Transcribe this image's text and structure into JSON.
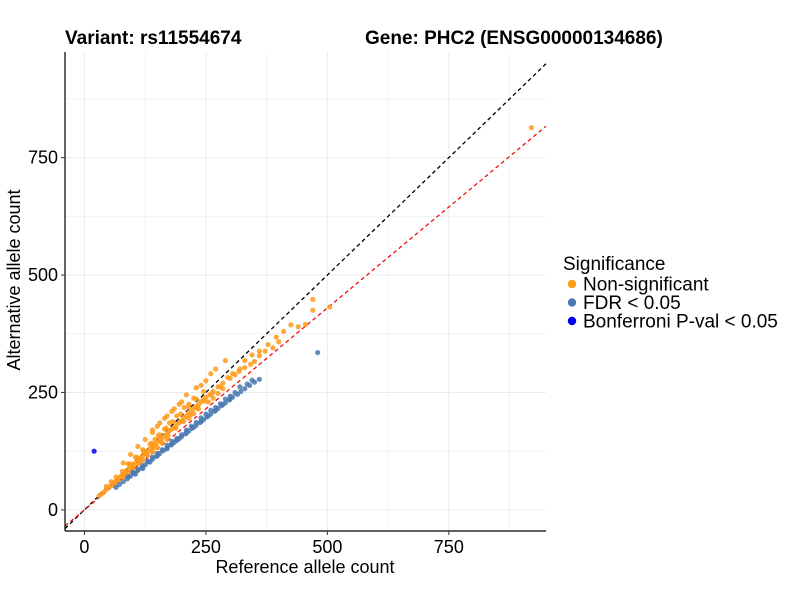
{
  "chart_data": {
    "type": "scatter",
    "title_left": "Variant: rs11554674",
    "title_right": "Gene: PHC2 (ENSG00000134686)",
    "xlabel": "Reference allele count",
    "ylabel": "Alternative allele count",
    "xlim": [
      -40,
      950
    ],
    "ylim": [
      -45,
      975
    ],
    "xticks": [
      0,
      250,
      500,
      750
    ],
    "yticks": [
      0,
      250,
      500,
      750
    ],
    "grid": true,
    "legend": {
      "title": "Significance",
      "placement": "right",
      "entries": [
        {
          "label": "Non-significant",
          "color": "#ff9a1a"
        },
        {
          "label": "FDR < 0.05",
          "color": "#4a78b0"
        },
        {
          "label": "Bonferroni P-val < 0.05",
          "color": "#0000ee"
        }
      ]
    },
    "reference_lines": [
      {
        "name": "identity",
        "slope": 1.0,
        "intercept": 0,
        "color": "#000000",
        "dash": true
      },
      {
        "name": "fit",
        "slope": 0.86,
        "intercept": 0,
        "color": "#ee1111",
        "dash": true
      }
    ],
    "series": [
      {
        "name": "Non-significant",
        "color": "#ff9a1a",
        "points": [
          [
            920,
            814
          ],
          [
            505,
            432
          ],
          [
            470,
            425
          ],
          [
            455,
            395
          ],
          [
            440,
            390
          ],
          [
            400,
            358
          ],
          [
            388,
            345
          ],
          [
            372,
            338
          ],
          [
            360,
            328
          ],
          [
            350,
            316
          ],
          [
            342,
            310
          ],
          [
            330,
            303
          ],
          [
            318,
            295
          ],
          [
            305,
            290
          ],
          [
            295,
            282
          ],
          [
            285,
            270
          ],
          [
            275,
            262
          ],
          [
            265,
            252
          ],
          [
            258,
            245
          ],
          [
            250,
            240
          ],
          [
            245,
            235
          ],
          [
            240,
            230
          ],
          [
            235,
            224
          ],
          [
            228,
            220
          ],
          [
            222,
            214
          ],
          [
            215,
            208
          ],
          [
            210,
            200
          ],
          [
            205,
            196
          ],
          [
            200,
            190
          ],
          [
            195,
            186
          ],
          [
            190,
            182
          ],
          [
            185,
            176
          ],
          [
            180,
            172
          ],
          [
            175,
            168
          ],
          [
            170,
            162
          ],
          [
            165,
            158
          ],
          [
            160,
            154
          ],
          [
            155,
            148
          ],
          [
            150,
            144
          ],
          [
            145,
            140
          ],
          [
            140,
            134
          ],
          [
            135,
            130
          ],
          [
            130,
            125
          ],
          [
            125,
            120
          ],
          [
            120,
            116
          ],
          [
            115,
            110
          ],
          [
            110,
            105
          ],
          [
            105,
            100
          ],
          [
            100,
            96
          ],
          [
            95,
            92
          ],
          [
            90,
            86
          ],
          [
            85,
            82
          ],
          [
            80,
            76
          ],
          [
            75,
            72
          ],
          [
            70,
            68
          ],
          [
            65,
            62
          ],
          [
            60,
            58
          ],
          [
            55,
            52
          ],
          [
            50,
            48
          ],
          [
            45,
            44
          ],
          [
            40,
            38
          ],
          [
            35,
            34
          ],
          [
            30,
            30
          ],
          [
            230,
            260
          ],
          [
            210,
            245
          ],
          [
            195,
            225
          ],
          [
            180,
            210
          ],
          [
            165,
            195
          ],
          [
            150,
            178
          ],
          [
            140,
            165
          ],
          [
            125,
            150
          ],
          [
            110,
            135
          ],
          [
            95,
            118
          ],
          [
            80,
            100
          ],
          [
            260,
            290
          ],
          [
            270,
            300
          ],
          [
            290,
            318
          ],
          [
            250,
            275
          ],
          [
            240,
            265
          ],
          [
            225,
            238
          ],
          [
            215,
            225
          ],
          [
            205,
            218
          ],
          [
            190,
            200
          ],
          [
            175,
            185
          ],
          [
            165,
            172
          ],
          [
            155,
            160
          ],
          [
            145,
            150
          ],
          [
            135,
            140
          ],
          [
            120,
            128
          ],
          [
            105,
            112
          ],
          [
            90,
            98
          ],
          [
            300,
            280
          ],
          [
            310,
            288
          ],
          [
            320,
            300
          ],
          [
            280,
            262
          ],
          [
            262,
            248
          ],
          [
            248,
            232
          ],
          [
            232,
            216
          ],
          [
            218,
            202
          ],
          [
            204,
            188
          ],
          [
            188,
            174
          ],
          [
            172,
            158
          ],
          [
            158,
            146
          ],
          [
            142,
            132
          ],
          [
            128,
            118
          ],
          [
            114,
            104
          ],
          [
            98,
            90
          ],
          [
            84,
            76
          ],
          [
            70,
            62
          ],
          [
            60,
            52
          ],
          [
            245,
            252
          ],
          [
            230,
            236
          ],
          [
            214,
            220
          ],
          [
            198,
            204
          ],
          [
            182,
            188
          ],
          [
            168,
            174
          ],
          [
            152,
            158
          ],
          [
            138,
            142
          ],
          [
            122,
            126
          ],
          [
            108,
            112
          ],
          [
            94,
            98
          ],
          [
            78,
            82
          ],
          [
            65,
            70
          ],
          [
            55,
            60
          ],
          [
            45,
            50
          ],
          [
            330,
            318
          ],
          [
            345,
            330
          ],
          [
            360,
            338
          ],
          [
            378,
            352
          ],
          [
            395,
            368
          ],
          [
            410,
            380
          ],
          [
            425,
            394
          ],
          [
            470,
            448
          ],
          [
            215,
            195
          ],
          [
            225,
            205
          ],
          [
            235,
            215
          ],
          [
            255,
            230
          ],
          [
            265,
            238
          ],
          [
            275,
            248
          ],
          [
            285,
            258
          ],
          [
            170,
            150
          ],
          [
            160,
            142
          ],
          [
            150,
            133
          ],
          [
            140,
            124
          ],
          [
            130,
            116
          ],
          [
            120,
            107
          ],
          [
            110,
            98
          ],
          [
            100,
            88
          ],
          [
            90,
            80
          ],
          [
            80,
            70
          ],
          [
            200,
            230
          ],
          [
            185,
            215
          ],
          [
            170,
            200
          ],
          [
            155,
            185
          ],
          [
            140,
            170
          ]
        ]
      },
      {
        "name": "FDR < 0.05",
        "color": "#4a78b0",
        "points": [
          [
            480,
            335
          ],
          [
            360,
            278
          ],
          [
            350,
            272
          ],
          [
            340,
            265
          ],
          [
            330,
            258
          ],
          [
            322,
            252
          ],
          [
            315,
            246
          ],
          [
            305,
            240
          ],
          [
            298,
            234
          ],
          [
            290,
            228
          ],
          [
            282,
            222
          ],
          [
            275,
            216
          ],
          [
            268,
            210
          ],
          [
            260,
            204
          ],
          [
            252,
            198
          ],
          [
            245,
            192
          ],
          [
            238,
            186
          ],
          [
            230,
            180
          ],
          [
            222,
            174
          ],
          [
            215,
            168
          ],
          [
            208,
            162
          ],
          [
            200,
            156
          ],
          [
            192,
            150
          ],
          [
            185,
            144
          ],
          [
            178,
            138
          ],
          [
            170,
            132
          ],
          [
            162,
            126
          ],
          [
            155,
            120
          ],
          [
            148,
            114
          ],
          [
            140,
            108
          ],
          [
            132,
            102
          ],
          [
            125,
            96
          ],
          [
            118,
            90
          ],
          [
            110,
            84
          ],
          [
            102,
            78
          ],
          [
            95,
            72
          ],
          [
            88,
            66
          ],
          [
            80,
            60
          ],
          [
            72,
            54
          ],
          [
            65,
            48
          ],
          [
            310,
            250
          ],
          [
            300,
            242
          ],
          [
            290,
            236
          ],
          [
            280,
            226
          ],
          [
            270,
            218
          ],
          [
            260,
            212
          ],
          [
            250,
            204
          ],
          [
            240,
            196
          ],
          [
            230,
            186
          ],
          [
            220,
            178
          ],
          [
            210,
            170
          ],
          [
            200,
            160
          ],
          [
            190,
            152
          ],
          [
            180,
            146
          ],
          [
            170,
            138
          ],
          [
            160,
            128
          ],
          [
            150,
            120
          ],
          [
            140,
            112
          ],
          [
            130,
            104
          ],
          [
            120,
            94
          ],
          [
            110,
            86
          ],
          [
            100,
            80
          ],
          [
            90,
            70
          ],
          [
            170,
            130
          ],
          [
            180,
            140
          ],
          [
            190,
            148
          ],
          [
            320,
            262
          ],
          [
            335,
            268
          ],
          [
            345,
            276
          ],
          [
            300,
            236
          ],
          [
            285,
            224
          ],
          [
            270,
            212
          ],
          [
            255,
            200
          ],
          [
            240,
            188
          ],
          [
            225,
            176
          ],
          [
            210,
            164
          ],
          [
            195,
            152
          ],
          [
            150,
            115
          ],
          [
            135,
            102
          ],
          [
            120,
            88
          ],
          [
            105,
            76
          ]
        ]
      },
      {
        "name": "Bonferroni P-val < 0.05",
        "color": "#0000ee",
        "points": [
          [
            20,
            125
          ]
        ]
      }
    ]
  }
}
